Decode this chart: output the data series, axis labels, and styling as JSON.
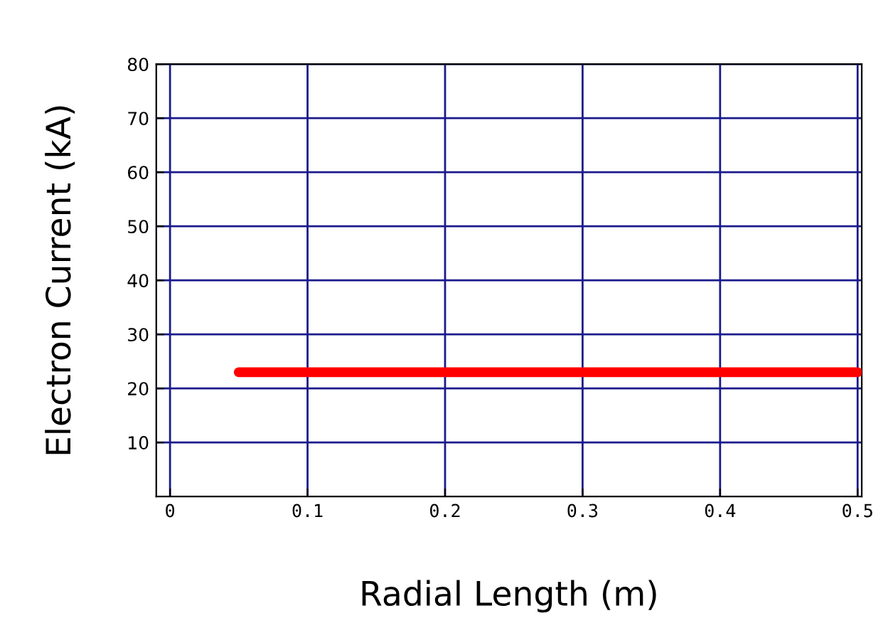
{
  "chart_data": {
    "type": "line",
    "xlabel": "Radial Length (m)",
    "ylabel": "Electron Current (kA)",
    "x": [
      0.05,
      0.5
    ],
    "series": [
      {
        "color": "#ff0000",
        "values": [
          23,
          23
        ]
      }
    ],
    "xlim": [
      -0.01,
      0.503
    ],
    "ylim": [
      0,
      80
    ],
    "xticks": [
      0,
      0.1,
      0.2,
      0.3,
      0.4,
      0.5
    ],
    "yticks": [
      10,
      20,
      30,
      40,
      50,
      60,
      70,
      80
    ],
    "grid": true,
    "marker": "none",
    "line_style": "solid"
  }
}
